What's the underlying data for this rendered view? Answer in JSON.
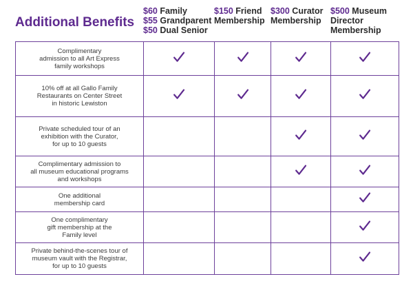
{
  "title": "Additional Benefits",
  "accent_color": "#5e2a8f",
  "columns": [
    {
      "lines": [
        {
          "price": "$60",
          "label": "Family"
        },
        {
          "price": "$55",
          "label": "Grandparent"
        },
        {
          "price": "$50",
          "label": "Dual Senior"
        }
      ]
    },
    {
      "lines": [
        {
          "price": "$150",
          "label": "Friend"
        },
        {
          "price": "",
          "label": "Membership"
        }
      ]
    },
    {
      "lines": [
        {
          "price": "$300",
          "label": "Curator"
        },
        {
          "price": "",
          "label": "Membership"
        }
      ]
    },
    {
      "lines": [
        {
          "price": "$500",
          "label": "Museum"
        },
        {
          "price": "",
          "label": "Director"
        },
        {
          "price": "",
          "label": "Membership"
        }
      ]
    }
  ],
  "rows": [
    {
      "benefit_lines": [
        "Complimentary",
        "admission to all Art Express",
        "family workshops"
      ],
      "checks": [
        true,
        true,
        true,
        true
      ]
    },
    {
      "benefit_lines": [
        "10% off at all Gallo Family",
        "Restaurants on Center Street",
        "in historic Lewiston"
      ],
      "checks": [
        true,
        true,
        true,
        true
      ]
    },
    {
      "benefit_lines": [
        "Private scheduled tour of an",
        "exhibition with the Curator,",
        "for up to 10 guests"
      ],
      "checks": [
        false,
        false,
        true,
        true
      ]
    },
    {
      "benefit_lines": [
        "Complimentary admission to",
        "all museum educational programs",
        "and workshops"
      ],
      "checks": [
        false,
        false,
        true,
        true
      ]
    },
    {
      "benefit_lines": [
        "One additional",
        "membership card"
      ],
      "checks": [
        false,
        false,
        false,
        true
      ]
    },
    {
      "benefit_lines": [
        "One complimentary",
        "gift membership at the",
        "Family level"
      ],
      "checks": [
        false,
        false,
        false,
        true
      ]
    },
    {
      "benefit_lines": [
        "Private behind-the-scenes tour of",
        "museum vault with the Registrar,",
        "for up to 10 guests"
      ],
      "checks": [
        false,
        false,
        false,
        true
      ]
    }
  ],
  "icons": {
    "check": "checkmark-icon"
  }
}
